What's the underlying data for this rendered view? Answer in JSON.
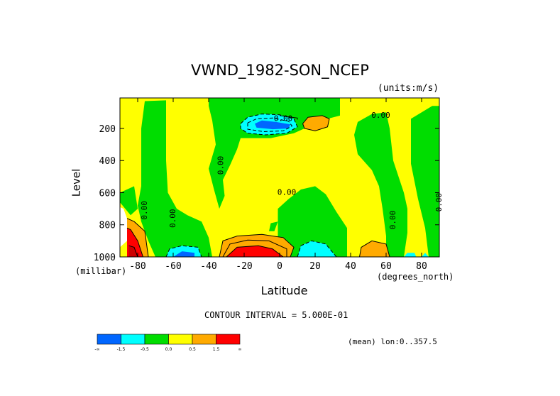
{
  "chart_data": {
    "type": "heatmap",
    "title": "VWND_1982-SON_NCEP",
    "units_note": "(units:m/s)",
    "xlabel": "Latitude",
    "ylabel": "Level",
    "x_unit": "(degrees_north)",
    "y_unit": "(millibar)",
    "xlim": [
      -90,
      90
    ],
    "ylim": [
      1000,
      10
    ],
    "y_reversed": true,
    "x_ticks": [
      -80,
      -60,
      -40,
      -20,
      0,
      20,
      40,
      60,
      80
    ],
    "x_tick_labels": [
      "-80",
      "-60",
      "-40",
      "-20",
      "0",
      "20",
      "40",
      "60",
      "80"
    ],
    "y_ticks": [
      200,
      400,
      600,
      800,
      1000
    ],
    "y_tick_labels": [
      "200",
      "400",
      "600",
      "800",
      "1000"
    ],
    "contour_interval_text": "CONTOUR INTERVAL = 5.000E-01",
    "subtitle_right": "(mean) lon:0..357.5",
    "contour_labels": [
      {
        "text": "0.00",
        "lat": 2,
        "level": 140,
        "rotate": 0
      },
      {
        "text": "0.00",
        "lat": 57,
        "level": 120,
        "rotate": 0
      },
      {
        "text": "0.00",
        "lat": -33,
        "level": 430,
        "rotate": -90
      },
      {
        "text": "0.00",
        "lat": 4,
        "level": 600,
        "rotate": 0
      },
      {
        "text": "0.00",
        "lat": -76,
        "level": 710,
        "rotate": -90
      },
      {
        "text": "0.00",
        "lat": -60,
        "level": 760,
        "rotate": -90
      },
      {
        "text": "0.00",
        "lat": 64,
        "level": 770,
        "rotate": -90
      },
      {
        "text": "0.00",
        "lat": 90,
        "level": 660,
        "rotate": -90
      }
    ],
    "legend": {
      "colors": [
        "#0066ff",
        "#00ffff",
        "#00dd00",
        "#ffff00",
        "#ffaa00",
        "#ff0000"
      ],
      "labels": [
        "-∞",
        "-1.5",
        "-0.5",
        "0.0",
        "0.5",
        "1.5",
        "∞"
      ]
    },
    "regions": [
      {
        "name": "positive-background",
        "color": "#ffff00",
        "polygon": [
          [
            -90,
            10
          ],
          [
            90,
            10
          ],
          [
            90,
            1000
          ],
          [
            -90,
            1000
          ]
        ]
      },
      {
        "name": "neg-band-sh",
        "color": "#00dd00",
        "polygon": [
          [
            -76,
            30
          ],
          [
            -64,
            25
          ],
          [
            -64,
            200
          ],
          [
            -64,
            400
          ],
          [
            -63,
            600
          ],
          [
            -58,
            700
          ],
          [
            -52,
            740
          ],
          [
            -44,
            780
          ],
          [
            -40,
            880
          ],
          [
            -38,
            1000
          ],
          [
            -70,
            1000
          ],
          [
            -74,
            900
          ],
          [
            -78,
            780
          ],
          [
            -80,
            680
          ],
          [
            -78,
            560
          ],
          [
            -78,
            400
          ],
          [
            -78,
            200
          ]
        ]
      },
      {
        "name": "neg-upper-mid",
        "color": "#00dd00",
        "polygon": [
          [
            -40,
            10
          ],
          [
            34,
            10
          ],
          [
            34,
            120
          ],
          [
            20,
            160
          ],
          [
            14,
            200
          ],
          [
            8,
            230
          ],
          [
            -5,
            260
          ],
          [
            -22,
            260
          ],
          [
            -24,
            330
          ],
          [
            -28,
            430
          ],
          [
            -32,
            520
          ],
          [
            -31,
            620
          ],
          [
            -34,
            700
          ],
          [
            -37,
            580
          ],
          [
            -40,
            450
          ],
          [
            -36,
            300
          ],
          [
            -38,
            150
          ],
          [
            -40,
            60
          ]
        ]
      },
      {
        "name": "neg-tropics-lower",
        "color": "#00dd00",
        "polygon": [
          [
            -1,
            700
          ],
          [
            5,
            640
          ],
          [
            12,
            580
          ],
          [
            20,
            560
          ],
          [
            26,
            610
          ],
          [
            32,
            720
          ],
          [
            38,
            820
          ],
          [
            38,
            1000
          ],
          [
            -1,
            1000
          ],
          [
            -1,
            840
          ]
        ]
      },
      {
        "name": "neg-nh-mid",
        "color": "#00dd00",
        "polygon": [
          [
            44,
            160
          ],
          [
            52,
            110
          ],
          [
            60,
            100
          ],
          [
            62,
            200
          ],
          [
            64,
            400
          ],
          [
            70,
            600
          ],
          [
            72,
            700
          ],
          [
            72,
            850
          ],
          [
            70,
            1000
          ],
          [
            60,
            1000
          ],
          [
            60,
            870
          ],
          [
            58,
            700
          ],
          [
            56,
            560
          ],
          [
            52,
            460
          ],
          [
            44,
            360
          ],
          [
            42,
            240
          ]
        ]
      },
      {
        "name": "neg-nh-polar",
        "color": "#00dd00",
        "polygon": [
          [
            74,
            140
          ],
          [
            86,
            60
          ],
          [
            90,
            60
          ],
          [
            90,
            1000
          ],
          [
            84,
            1000
          ],
          [
            82,
            820
          ],
          [
            78,
            640
          ],
          [
            74,
            420
          ],
          [
            74,
            250
          ]
        ]
      },
      {
        "name": "neg-polar-sh-edge",
        "color": "#00dd00",
        "polygon": [
          [
            -90,
            600
          ],
          [
            -82,
            560
          ],
          [
            -80,
            700
          ],
          [
            -84,
            740
          ],
          [
            -90,
            660
          ]
        ]
      },
      {
        "name": "neg-small-low",
        "color": "#00dd00",
        "polygon": [
          [
            -5,
            790
          ],
          [
            -1,
            780
          ],
          [
            -3,
            840
          ],
          [
            -6,
            840
          ]
        ]
      },
      {
        "name": "jet-cyan",
        "color": "#00ffff",
        "polygon": [
          [
            -22,
            170
          ],
          [
            -18,
            130
          ],
          [
            -10,
            110
          ],
          [
            0,
            115
          ],
          [
            8,
            140
          ],
          [
            10,
            190
          ],
          [
            4,
            230
          ],
          [
            -8,
            240
          ],
          [
            -18,
            230
          ],
          [
            -22,
            200
          ]
        ]
      },
      {
        "name": "jet-blue",
        "color": "#0066ff",
        "polygon": [
          [
            -14,
            170
          ],
          [
            -10,
            150
          ],
          [
            -2,
            160
          ],
          [
            6,
            175
          ],
          [
            5,
            200
          ],
          [
            -4,
            205
          ],
          [
            -13,
            195
          ]
        ]
      },
      {
        "name": "cyan-low-sh",
        "color": "#00ffff",
        "polygon": [
          [
            -64,
            1000
          ],
          [
            -62,
            950
          ],
          [
            -55,
            930
          ],
          [
            -46,
            940
          ],
          [
            -44,
            1000
          ]
        ]
      },
      {
        "name": "blue-low-sh",
        "color": "#0066ff",
        "polygon": [
          [
            -60,
            1000
          ],
          [
            -55,
            965
          ],
          [
            -48,
            975
          ],
          [
            -48,
            1000
          ]
        ]
      },
      {
        "name": "cyan-low-trop",
        "color": "#00ffff",
        "polygon": [
          [
            10,
            1000
          ],
          [
            12,
            930
          ],
          [
            18,
            900
          ],
          [
            26,
            920
          ],
          [
            32,
            1000
          ]
        ]
      },
      {
        "name": "cyan-low-nh",
        "color": "#00ffff",
        "polygon": [
          [
            70,
            1000
          ],
          [
            72,
            975
          ],
          [
            76,
            975
          ],
          [
            77,
            1000
          ]
        ]
      },
      {
        "name": "cyan-low-nh2",
        "color": "#00ffff",
        "polygon": [
          [
            80,
            1000
          ],
          [
            82,
            975
          ],
          [
            84,
            1000
          ]
        ]
      },
      {
        "name": "orange-upper-nh",
        "color": "#ffaa00",
        "polygon": [
          [
            13,
            170
          ],
          [
            16,
            130
          ],
          [
            24,
            120
          ],
          [
            28,
            140
          ],
          [
            27,
            190
          ],
          [
            20,
            215
          ],
          [
            14,
            200
          ]
        ]
      },
      {
        "name": "orange-low-mid",
        "color": "#ffaa00",
        "polygon": [
          [
            -34,
            1000
          ],
          [
            -32,
            900
          ],
          [
            -24,
            870
          ],
          [
            -10,
            860
          ],
          [
            2,
            880
          ],
          [
            8,
            940
          ],
          [
            6,
            1000
          ]
        ]
      },
      {
        "name": "red-low-mid",
        "color": "#ff0000",
        "polygon": [
          [
            -30,
            1000
          ],
          [
            -24,
            940
          ],
          [
            -12,
            930
          ],
          [
            -4,
            950
          ],
          [
            2,
            1000
          ]
        ]
      },
      {
        "name": "orange-low-nh",
        "color": "#ffaa00",
        "polygon": [
          [
            45,
            1000
          ],
          [
            46,
            940
          ],
          [
            52,
            900
          ],
          [
            60,
            920
          ],
          [
            62,
            1000
          ]
        ]
      },
      {
        "name": "white-polar-sh",
        "color": "#ffffff",
        "polygon": [
          [
            -90,
            690
          ],
          [
            -88,
            700
          ],
          [
            -86,
            760
          ],
          [
            -86,
            900
          ],
          [
            -90,
            940
          ]
        ]
      },
      {
        "name": "orange-polar-sh",
        "color": "#ffaa00",
        "polygon": [
          [
            -86,
            760
          ],
          [
            -82,
            780
          ],
          [
            -76,
            840
          ],
          [
            -74,
            1000
          ],
          [
            -86,
            1000
          ]
        ]
      },
      {
        "name": "red-polar-sh",
        "color": "#ff0000",
        "polygon": [
          [
            -86,
            820
          ],
          [
            -84,
            830
          ],
          [
            -80,
            900
          ],
          [
            -77,
            1000
          ],
          [
            -86,
            1000
          ]
        ]
      },
      {
        "name": "red-polar-sh-dark",
        "color": "#cc0000",
        "polygon": [
          [
            -85,
            930
          ],
          [
            -82,
            940
          ],
          [
            -80,
            1000
          ],
          [
            -85,
            1000
          ]
        ]
      }
    ],
    "contours": [
      {
        "style": "solid",
        "points": [
          [
            0,
            120
          ],
          [
            10,
            135
          ],
          [
            10,
            145
          ]
        ]
      },
      {
        "style": "dashed",
        "points": [
          [
            -22,
            170
          ],
          [
            -18,
            130
          ],
          [
            -10,
            110
          ],
          [
            0,
            115
          ],
          [
            8,
            140
          ],
          [
            10,
            190
          ],
          [
            4,
            230
          ],
          [
            -8,
            240
          ],
          [
            -18,
            230
          ],
          [
            -22,
            200
          ],
          [
            -22,
            170
          ]
        ]
      },
      {
        "style": "dashed",
        "points": [
          [
            -18,
            165
          ],
          [
            -13,
            140
          ],
          [
            -4,
            135
          ],
          [
            5,
            155
          ],
          [
            7,
            185
          ],
          [
            2,
            215
          ],
          [
            -9,
            220
          ],
          [
            -18,
            205
          ],
          [
            -18,
            165
          ]
        ]
      },
      {
        "style": "dashed",
        "points": [
          [
            -64,
            1000
          ],
          [
            -62,
            950
          ],
          [
            -55,
            930
          ],
          [
            -46,
            940
          ],
          [
            -44,
            1000
          ]
        ]
      },
      {
        "style": "dashed",
        "points": [
          [
            10,
            1000
          ],
          [
            12,
            930
          ],
          [
            18,
            900
          ],
          [
            26,
            920
          ],
          [
            32,
            1000
          ]
        ]
      },
      {
        "style": "solid",
        "points": [
          [
            -34,
            1000
          ],
          [
            -32,
            900
          ],
          [
            -24,
            870
          ],
          [
            -10,
            860
          ],
          [
            2,
            880
          ],
          [
            8,
            940
          ],
          [
            6,
            1000
          ]
        ]
      },
      {
        "style": "solid",
        "points": [
          [
            -32,
            1000
          ],
          [
            -28,
            920
          ],
          [
            -18,
            895
          ],
          [
            -6,
            900
          ],
          [
            4,
            950
          ],
          [
            4,
            1000
          ]
        ]
      },
      {
        "style": "solid",
        "points": [
          [
            -30,
            1000
          ],
          [
            -24,
            940
          ],
          [
            -12,
            930
          ],
          [
            -4,
            950
          ],
          [
            2,
            1000
          ]
        ]
      },
      {
        "style": "solid",
        "points": [
          [
            -86,
            760
          ],
          [
            -82,
            780
          ],
          [
            -76,
            840
          ],
          [
            -74,
            1000
          ]
        ]
      },
      {
        "style": "solid",
        "points": [
          [
            -86,
            820
          ],
          [
            -84,
            830
          ],
          [
            -80,
            900
          ],
          [
            -77,
            1000
          ]
        ]
      },
      {
        "style": "solid",
        "points": [
          [
            -85,
            930
          ],
          [
            -82,
            940
          ],
          [
            -80,
            1000
          ]
        ]
      },
      {
        "style": "solid",
        "points": [
          [
            45,
            1000
          ],
          [
            46,
            940
          ],
          [
            52,
            900
          ],
          [
            60,
            920
          ],
          [
            62,
            1000
          ]
        ]
      },
      {
        "style": "solid",
        "points": [
          [
            13,
            170
          ],
          [
            16,
            130
          ],
          [
            24,
            120
          ],
          [
            28,
            140
          ],
          [
            27,
            190
          ],
          [
            20,
            215
          ],
          [
            14,
            200
          ],
          [
            13,
            170
          ]
        ]
      }
    ]
  }
}
